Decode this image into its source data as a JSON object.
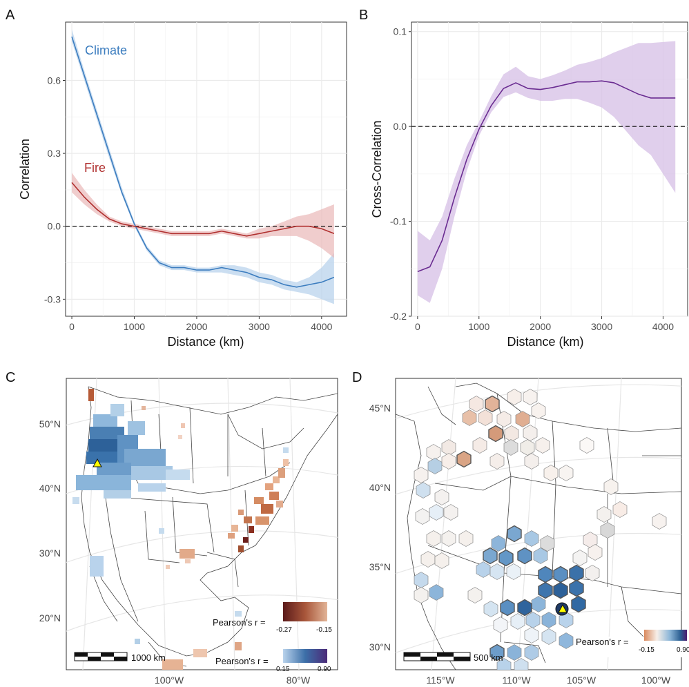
{
  "panels": {
    "A": "A",
    "B": "B",
    "C": "C",
    "D": "D"
  },
  "colors": {
    "climate": "#3c7dbf",
    "climate_band": "#b9d3ec",
    "fire": "#b0302f",
    "fire_band": "#ebbcbc",
    "xcorr": "#6a2c91",
    "xcorr_band": "#d6bfe6",
    "grid": "#ebebeb",
    "map_positive_dark": "#2b5f92",
    "map_negative_dark": "#5b1a1a",
    "marker": "#ffff00"
  },
  "chart_data": [
    {
      "type": "line",
      "panel": "A",
      "xlabel": "Distance (km)",
      "ylabel": "Correlation",
      "xlim": [
        -100,
        4400
      ],
      "ylim": [
        -0.37,
        0.84
      ],
      "xticks": [
        0,
        1000,
        2000,
        3000,
        4000
      ],
      "yticks": [
        -0.3,
        0.0,
        0.3,
        0.6
      ],
      "ytick_labels": [
        "-0.3",
        "0.0",
        "0.3",
        "0.6"
      ],
      "xtick_labels": [
        "0",
        "1000",
        "2000",
        "3000",
        "4000"
      ],
      "reference_line_y": 0,
      "grid": true,
      "series": [
        {
          "name": "Climate",
          "x": [
            0,
            200,
            400,
            600,
            800,
            1000,
            1200,
            1400,
            1600,
            1800,
            2000,
            2200,
            2400,
            2600,
            2800,
            3000,
            3200,
            3400,
            3600,
            3800,
            4000,
            4200
          ],
          "y": [
            0.78,
            0.62,
            0.46,
            0.3,
            0.14,
            0.01,
            -0.09,
            -0.15,
            -0.17,
            -0.17,
            -0.18,
            -0.18,
            -0.17,
            -0.18,
            -0.19,
            -0.21,
            -0.22,
            -0.24,
            -0.25,
            -0.24,
            -0.23,
            -0.21
          ],
          "band_lo": [
            0.76,
            0.6,
            0.44,
            0.28,
            0.13,
            0.0,
            -0.1,
            -0.16,
            -0.18,
            -0.18,
            -0.19,
            -0.19,
            -0.19,
            -0.2,
            -0.21,
            -0.23,
            -0.24,
            -0.26,
            -0.27,
            -0.28,
            -0.3,
            -0.32
          ],
          "band_hi": [
            0.81,
            0.64,
            0.48,
            0.32,
            0.16,
            0.02,
            -0.08,
            -0.14,
            -0.16,
            -0.16,
            -0.17,
            -0.17,
            -0.16,
            -0.16,
            -0.17,
            -0.19,
            -0.2,
            -0.22,
            -0.23,
            -0.21,
            -0.17,
            -0.11
          ]
        },
        {
          "name": "Fire",
          "x": [
            0,
            200,
            400,
            600,
            800,
            1000,
            1200,
            1400,
            1600,
            1800,
            2000,
            2200,
            2400,
            2600,
            2800,
            3000,
            3200,
            3400,
            3600,
            3800,
            4000,
            4200
          ],
          "y": [
            0.18,
            0.12,
            0.07,
            0.03,
            0.01,
            0.0,
            -0.01,
            -0.02,
            -0.03,
            -0.03,
            -0.03,
            -0.03,
            -0.02,
            -0.03,
            -0.04,
            -0.03,
            -0.02,
            -0.01,
            0.0,
            0.0,
            -0.01,
            -0.03
          ],
          "band_lo": [
            0.14,
            0.09,
            0.05,
            0.02,
            0.0,
            -0.01,
            -0.02,
            -0.03,
            -0.04,
            -0.04,
            -0.04,
            -0.04,
            -0.03,
            -0.04,
            -0.05,
            -0.05,
            -0.04,
            -0.04,
            -0.04,
            -0.06,
            -0.09,
            -0.13
          ],
          "band_hi": [
            0.22,
            0.15,
            0.09,
            0.04,
            0.02,
            0.01,
            0.0,
            -0.01,
            -0.02,
            -0.02,
            -0.02,
            -0.02,
            -0.01,
            -0.02,
            -0.03,
            -0.01,
            0.0,
            0.02,
            0.04,
            0.05,
            0.07,
            0.09
          ]
        }
      ]
    },
    {
      "type": "line",
      "panel": "B",
      "xlabel": "Distance (km)",
      "ylabel": "Cross-Correlation",
      "xlim": [
        -100,
        4400
      ],
      "ylim": [
        -0.2,
        0.11
      ],
      "xticks": [
        0,
        1000,
        2000,
        3000,
        4000
      ],
      "yticks": [
        -0.2,
        -0.1,
        0.0,
        0.1
      ],
      "ytick_labels": [
        "-0.2",
        "-0.1",
        "0.0",
        "0.1"
      ],
      "xtick_labels": [
        "0",
        "1000",
        "2000",
        "3000",
        "4000"
      ],
      "reference_line_y": 0,
      "grid": true,
      "series": [
        {
          "x": [
            0,
            200,
            400,
            600,
            800,
            1000,
            1200,
            1400,
            1600,
            1800,
            2000,
            2200,
            2400,
            2600,
            2800,
            3000,
            3200,
            3400,
            3600,
            3800,
            4000,
            4200
          ],
          "y": [
            -0.153,
            -0.148,
            -0.12,
            -0.075,
            -0.035,
            -0.003,
            0.022,
            0.04,
            0.046,
            0.04,
            0.039,
            0.041,
            0.044,
            0.047,
            0.047,
            0.048,
            0.046,
            0.04,
            0.034,
            0.03,
            0.03,
            0.03
          ],
          "band_lo": [
            -0.178,
            -0.186,
            -0.15,
            -0.095,
            -0.047,
            -0.01,
            0.015,
            0.031,
            0.036,
            0.03,
            0.027,
            0.027,
            0.029,
            0.029,
            0.025,
            0.02,
            0.01,
            -0.005,
            -0.02,
            -0.03,
            -0.05,
            -0.07
          ],
          "band_hi": [
            -0.11,
            -0.12,
            -0.095,
            -0.055,
            -0.02,
            0.005,
            0.032,
            0.055,
            0.063,
            0.053,
            0.05,
            0.054,
            0.059,
            0.065,
            0.068,
            0.072,
            0.078,
            0.083,
            0.088,
            0.088,
            0.089,
            0.09
          ]
        }
      ]
    }
  ],
  "map_c": {
    "lat_labels": [
      "50°N",
      "40°N",
      "30°N",
      "20°N"
    ],
    "lon_labels": [
      "100°W",
      "80°W"
    ],
    "scalebar": "1000 km",
    "legend_negative": {
      "title": "Pearson's r =",
      "min": "-0.27",
      "max": "-0.15"
    },
    "legend_positive": {
      "title": "Pearson's r =",
      "min": "0.15",
      "max": "0.90"
    }
  },
  "map_d": {
    "lat_labels": [
      "45°N",
      "40°N",
      "35°N",
      "30°N"
    ],
    "lon_labels": [
      "115°W",
      "110°W",
      "105°W",
      "100°W"
    ],
    "scalebar": "500 km",
    "legend": {
      "title": "Pearson's r =",
      "min": "-0.15",
      "max": "0.90"
    }
  }
}
